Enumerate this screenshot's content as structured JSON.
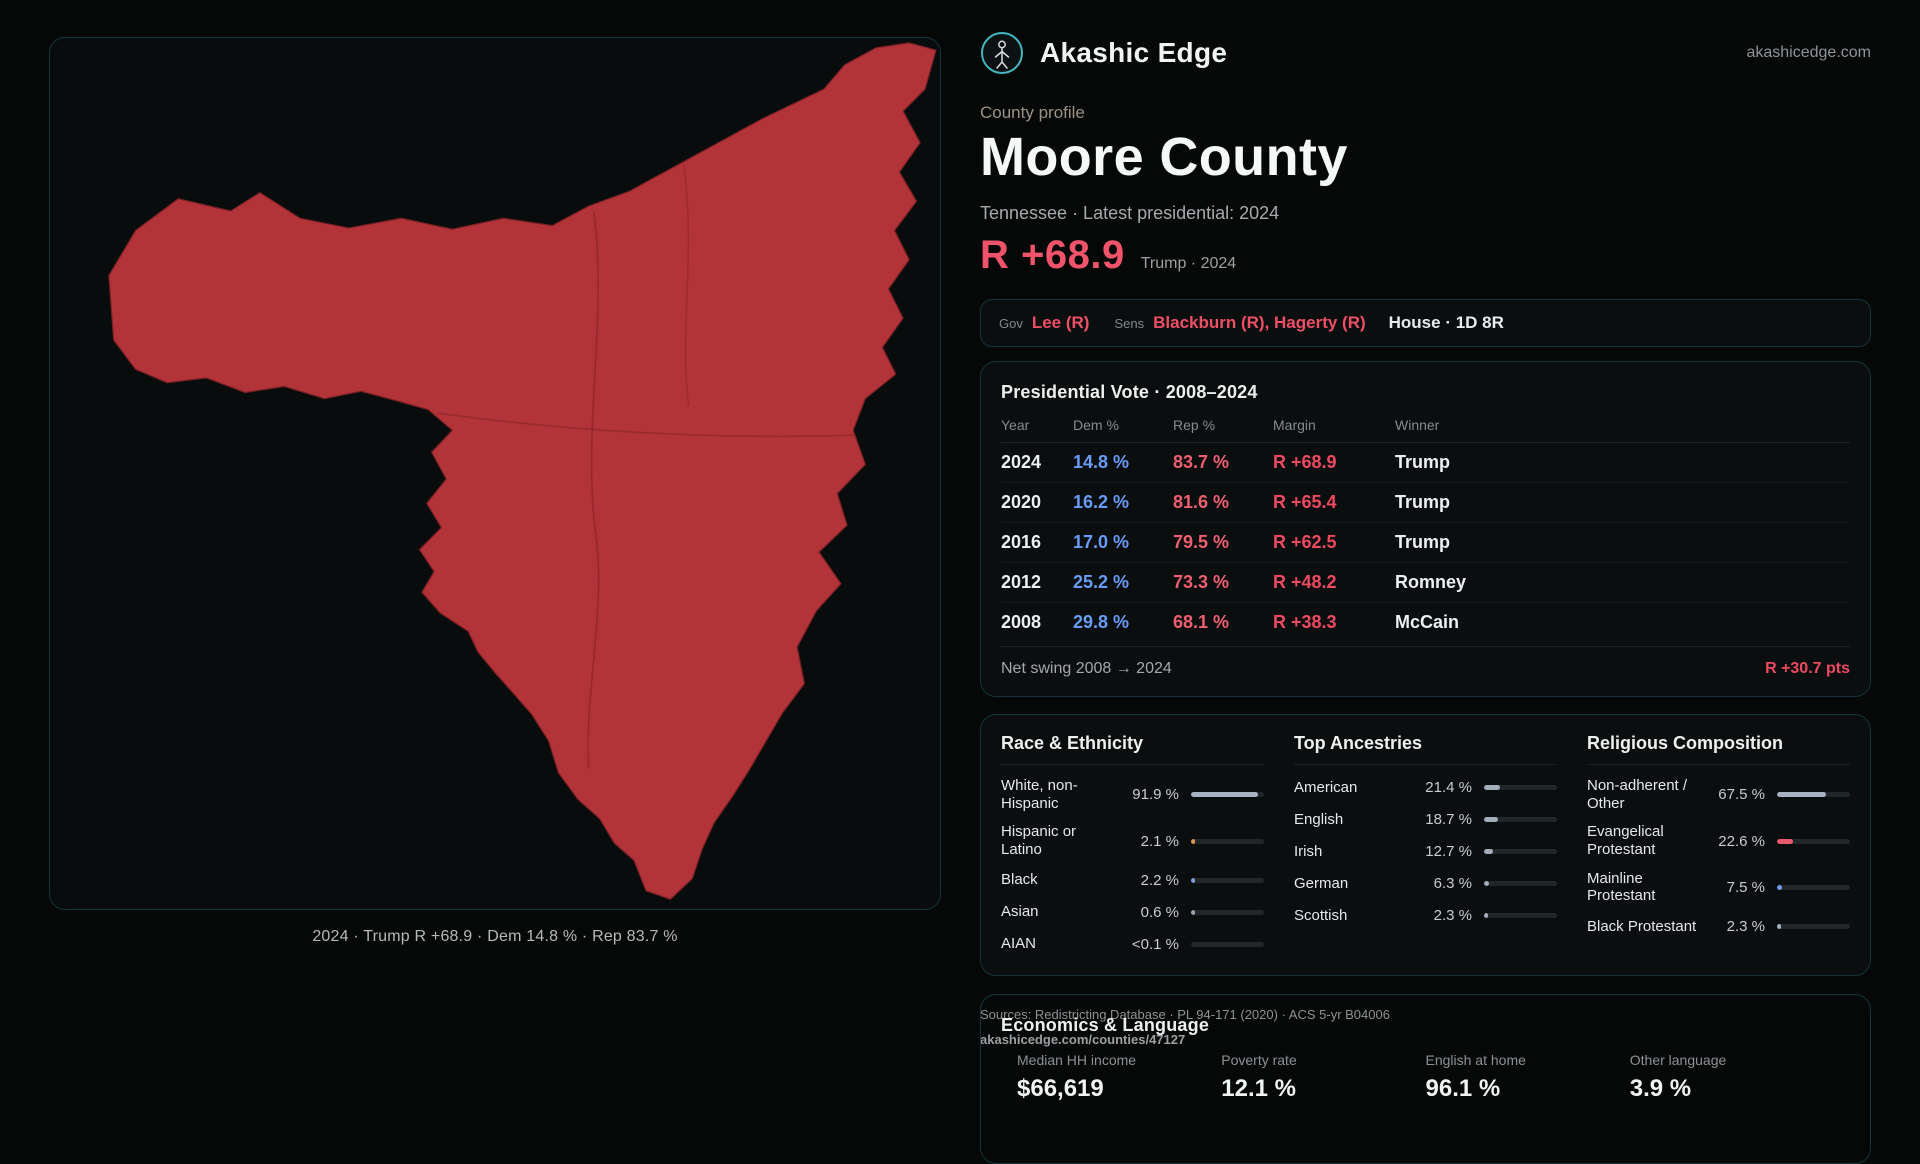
{
  "brand": {
    "name": "Akashic Edge",
    "domain": "akashicedge.com"
  },
  "profile": {
    "kicker": "County profile",
    "title": "Moore County",
    "subtitle": "Tennessee · Latest presidential: 2024",
    "headline_margin": "R +68.9",
    "headline_context": "Trump · 2024"
  },
  "officials": {
    "gov_label": "Gov",
    "gov_value": "Lee (R)",
    "sens_label": "Sens",
    "sens_value": "Blackburn (R), Hagerty (R)",
    "house_value": "House · 1D 8R"
  },
  "map": {
    "caption": "2024 · Trump R +68.9 · Dem 14.8 % · Rep 83.7 %"
  },
  "presidential": {
    "title": "Presidential Vote · 2008–2024",
    "columns": [
      "Year",
      "Dem %",
      "Rep %",
      "Margin",
      "Winner"
    ],
    "rows": [
      {
        "year": "2024",
        "dem": "14.8 %",
        "rep": "83.7 %",
        "margin": "R +68.9",
        "winner": "Trump"
      },
      {
        "year": "2020",
        "dem": "16.2 %",
        "rep": "81.6 %",
        "margin": "R +65.4",
        "winner": "Trump"
      },
      {
        "year": "2016",
        "dem": "17.0 %",
        "rep": "79.5 %",
        "margin": "R +62.5",
        "winner": "Trump"
      },
      {
        "year": "2012",
        "dem": "25.2 %",
        "rep": "73.3 %",
        "margin": "R +48.2",
        "winner": "Romney"
      },
      {
        "year": "2008",
        "dem": "29.8 %",
        "rep": "68.1 %",
        "margin": "R +38.3",
        "winner": "McCain"
      }
    ],
    "net_swing_label": "Net swing 2008 → 2024",
    "net_swing_value": "R +30.7 pts"
  },
  "demographics": {
    "race": {
      "title": "Race & Ethnicity",
      "rows": [
        {
          "label": "White, non-Hispanic",
          "value": "91.9 %",
          "pct": 91.9,
          "color": "#a9b2c4"
        },
        {
          "label": "Hispanic or Latino",
          "value": "2.1 %",
          "pct": 2.1,
          "color": "#e0984d"
        },
        {
          "label": "Black",
          "value": "2.2 %",
          "pct": 2.2,
          "color": "#7f9cd8"
        },
        {
          "label": "Asian",
          "value": "0.6 %",
          "pct": 0.6,
          "color": "#9aa1a7"
        },
        {
          "label": "AIAN",
          "value": "<0.1 %",
          "pct": 0,
          "color": "#9aa1a7"
        }
      ]
    },
    "ancestries": {
      "title": "Top Ancestries",
      "rows": [
        {
          "label": "American",
          "value": "21.4 %",
          "pct": 21.4,
          "color": "#a4adba"
        },
        {
          "label": "English",
          "value": "18.7 %",
          "pct": 18.7,
          "color": "#a4adba"
        },
        {
          "label": "Irish",
          "value": "12.7 %",
          "pct": 12.7,
          "color": "#a4adba"
        },
        {
          "label": "German",
          "value": "6.3 %",
          "pct": 6.3,
          "color": "#a4adba"
        },
        {
          "label": "Scottish",
          "value": "2.3 %",
          "pct": 2.3,
          "color": "#a4adba"
        }
      ]
    },
    "religion": {
      "title": "Religious Composition",
      "rows": [
        {
          "label": "Non-adherent / Other",
          "value": "67.5 %",
          "pct": 67.5,
          "color": "#a9b2c4"
        },
        {
          "label": "Evangelical Protestant",
          "value": "22.6 %",
          "pct": 22.6,
          "color": "#e8596b"
        },
        {
          "label": "Mainline Protestant",
          "value": "7.5 %",
          "pct": 7.5,
          "color": "#6f9ff8"
        },
        {
          "label": "Black Protestant",
          "value": "2.3 %",
          "pct": 2.3,
          "color": "#a9b2c4"
        }
      ]
    }
  },
  "economics": {
    "title": "Economics & Language",
    "items": [
      {
        "label": "Median HH income",
        "value": "$66,619"
      },
      {
        "label": "Poverty rate",
        "value": "12.1 %"
      },
      {
        "label": "English at home",
        "value": "96.1 %"
      },
      {
        "label": "Other language",
        "value": "3.9 %"
      }
    ]
  },
  "footer": {
    "sources": "Sources: Redistricting Database · PL 94-171 (2020) · ACS 5-yr B04006",
    "permalink": "akashicedge.com/counties/47127"
  },
  "colors": {
    "accent_red": "#f0536a",
    "dem_blue": "#699cf6",
    "rep_red": "#ee5f6f",
    "teal_border": "#143539",
    "map_fill": "#b23338"
  }
}
